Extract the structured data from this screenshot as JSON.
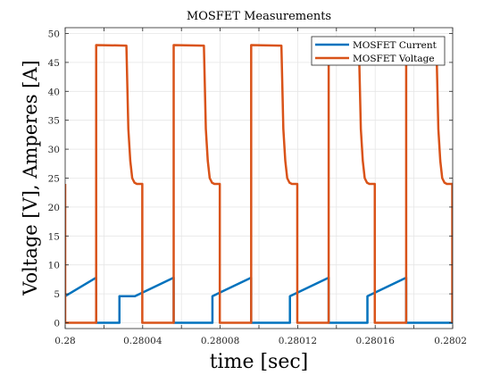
{
  "chart_data": {
    "type": "line",
    "title": "MOSFET Measurements",
    "xlabel": "time [sec]",
    "ylabel": "Voltage [V], Amperes [A]",
    "xlim": [
      0.28,
      0.2802
    ],
    "ylim": [
      -1,
      51
    ],
    "grid": true,
    "legend_position": "top-right",
    "x_ticks": [
      0.28,
      0.28002,
      0.28004,
      0.28006,
      0.28008,
      0.2801,
      0.28012,
      0.28014,
      0.28016,
      0.28018,
      0.2802
    ],
    "x_tick_labels": [
      "0.28",
      "",
      "0.28004",
      "",
      "0.28008",
      "",
      "0.28012",
      "",
      "0.28016",
      "",
      "0.2802"
    ],
    "y_ticks": [
      0,
      5,
      10,
      15,
      20,
      25,
      30,
      35,
      40,
      45,
      50
    ],
    "y_tick_labels": [
      "0",
      "5",
      "10",
      "15",
      "20",
      "25",
      "30",
      "35",
      "40",
      "45",
      "50"
    ],
    "series": [
      {
        "name": "MOSFET Current",
        "color": "#0072bd",
        "x": [
          0.28,
          0.280016,
          0.280016,
          0.280028,
          0.280028,
          0.280036,
          0.280036,
          0.280056,
          0.280056,
          0.280068,
          0.280068,
          0.280076,
          0.280076,
          0.280096,
          0.280096,
          0.280108,
          0.280108,
          0.280116,
          0.280116,
          0.280136,
          0.280136,
          0.280148,
          0.280148,
          0.280156,
          0.280156,
          0.280176,
          0.280176,
          0.280188,
          0.280188,
          0.2802
        ],
        "y": [
          4.6,
          7.8,
          0,
          0,
          4.6,
          4.6,
          4.6,
          7.8,
          0,
          0,
          0,
          0,
          4.6,
          7.8,
          0,
          0,
          0,
          0,
          4.6,
          7.8,
          0,
          0,
          0,
          0,
          4.6,
          7.8,
          0,
          0,
          0,
          0
        ]
      },
      {
        "name": "MOSFET Voltage",
        "color": "#d95319",
        "x": [
          0.28,
          0.28,
          0.280016,
          0.280016,
          0.2800316,
          0.2800326,
          0.2800336,
          0.2800346,
          0.2800358,
          0.280037,
          0.2800398,
          0.2800398,
          0.280056,
          0.280056,
          0.2800716,
          0.2800726,
          0.2800736,
          0.2800746,
          0.2800758,
          0.280077,
          0.2800798,
          0.2800798,
          0.280096,
          0.280096,
          0.2801116,
          0.2801126,
          0.2801136,
          0.2801146,
          0.2801158,
          0.280117,
          0.2801198,
          0.2801198,
          0.280136,
          0.280136,
          0.2801516,
          0.2801526,
          0.2801536,
          0.2801546,
          0.2801558,
          0.280157,
          0.2801598,
          0.2801598,
          0.280176,
          0.280176,
          0.2801916,
          0.2801926,
          0.2801936,
          0.2801946,
          0.2801958,
          0.280197,
          0.2801998,
          0.2801998
        ],
        "y": [
          24,
          0,
          0,
          48,
          47.9,
          33.5,
          28,
          25,
          24.2,
          24,
          24,
          0,
          0,
          48,
          47.9,
          33.5,
          28,
          25,
          24.2,
          24,
          24,
          0,
          0,
          48,
          47.9,
          33.5,
          28,
          25,
          24.2,
          24,
          24,
          0,
          0,
          48,
          47.9,
          33.5,
          28,
          25,
          24.2,
          24,
          24,
          0,
          0,
          48,
          47.9,
          33.5,
          28,
          25,
          24.2,
          24,
          24,
          0
        ]
      }
    ]
  }
}
